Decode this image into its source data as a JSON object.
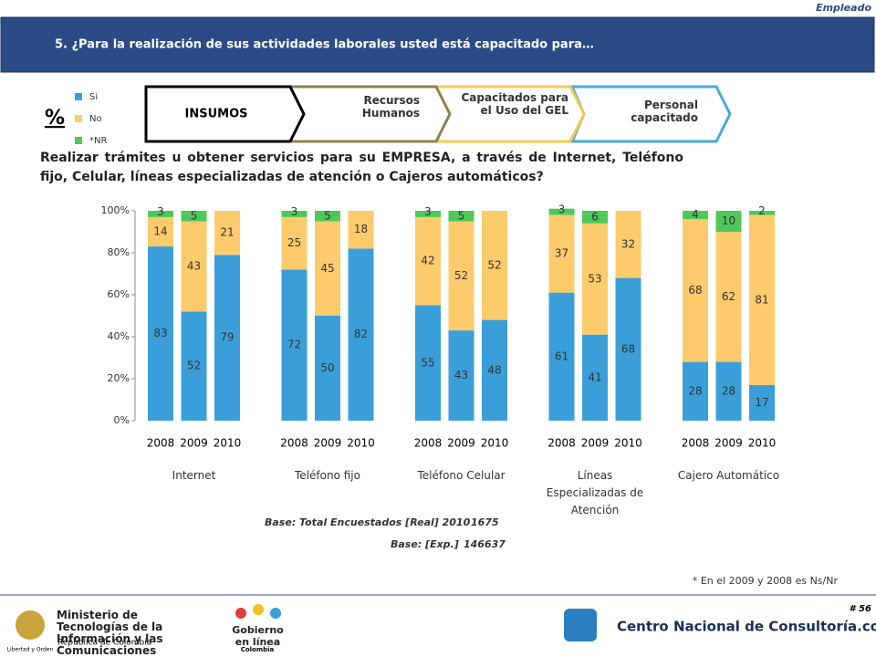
{
  "page": {
    "tag": "Empleado",
    "header": "5. ¿Para la realización de sus actividades laborales usted está capacitado para…",
    "tabs": [
      "INSUMOS",
      "Recursos Humanos",
      "Capacitados para el Uso del GEL",
      "Personal capacitado"
    ],
    "question": "Realizar trámites u obtener servicios para su EMPRESA, a través de Internet, Teléfono fijo, Celular, líneas especializadas de atención o Cajeros automáticos?",
    "base_real_label": "Base: Total Encuestados [Real] 2010",
    "base_real": "1675",
    "base_exp_label": "Base: [Exp.]",
    "base_exp": "146637",
    "footnote": "* En el 2009 y 2008 es Ns/Nr",
    "page_number": "# 56",
    "ministry": "Ministerio de Tecnologías de la Información y las Comunicaciones",
    "republic": "República de Colombia",
    "motto": "Libertad y Orden",
    "gel": "Gobierno en línea",
    "gel_country": "Colombia",
    "cnc": "Centro Nacional de Consultoría.com"
  },
  "chart_data": {
    "type": "bar",
    "stacked": true,
    "legend_title": "%",
    "ylim": [
      0,
      100
    ],
    "yticks": [
      {
        "value": 0,
        "label": "0%"
      },
      {
        "value": 20,
        "label": "20%"
      },
      {
        "value": 40,
        "label": "40%"
      },
      {
        "value": 60,
        "label": "60%"
      },
      {
        "value": 80,
        "label": "80%"
      },
      {
        "value": 100,
        "label": "100%"
      }
    ],
    "series": [
      {
        "name": "Si",
        "color": "#3a9fd8"
      },
      {
        "name": "No",
        "color": "#fccb6b"
      },
      {
        "name": "*NR",
        "color": "#4fc85a"
      }
    ],
    "groups": [
      {
        "name": "Internet",
        "categories": [
          "2008",
          "2009",
          "2010"
        ],
        "values": [
          [
            83,
            52,
            79
          ],
          [
            14,
            43,
            21
          ],
          [
            3,
            5,
            null
          ]
        ]
      },
      {
        "name": "Teléfono fijo",
        "categories": [
          "2008",
          "2009",
          "2010"
        ],
        "values": [
          [
            72,
            50,
            82
          ],
          [
            25,
            45,
            18
          ],
          [
            3,
            5,
            null
          ]
        ]
      },
      {
        "name": "Teléfono Celular",
        "categories": [
          "2008",
          "2009",
          "2010"
        ],
        "values": [
          [
            55,
            43,
            48
          ],
          [
            42,
            52,
            52
          ],
          [
            3,
            5,
            null
          ]
        ]
      },
      {
        "name": "Líneas Especializadas de Atención",
        "categories": [
          "2008",
          "2009",
          "2010"
        ],
        "values": [
          [
            61,
            41,
            68
          ],
          [
            37,
            53,
            32
          ],
          [
            3,
            6,
            null
          ]
        ]
      },
      {
        "name": "Cajero Automático",
        "categories": [
          "2008",
          "2009",
          "2010"
        ],
        "values": [
          [
            28,
            28,
            17
          ],
          [
            68,
            62,
            81
          ],
          [
            4,
            10,
            2
          ]
        ]
      }
    ]
  }
}
